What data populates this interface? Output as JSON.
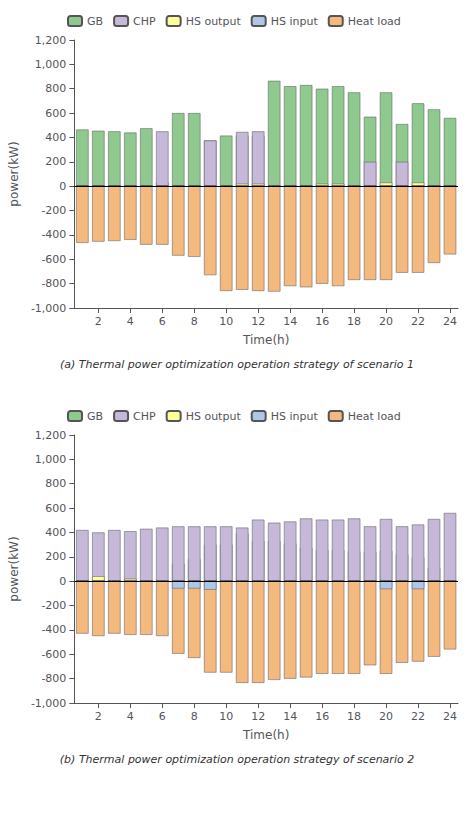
{
  "chart_data": [
    {
      "type": "bar",
      "stacked": true,
      "grid": false,
      "legend": "upper left",
      "title": "(a) Thermal power optimization operation strategy of scenario 1",
      "xlabel": "Time(h)",
      "ylabel": "power(kW)",
      "x": [
        1,
        2,
        3,
        4,
        5,
        6,
        7,
        8,
        9,
        10,
        11,
        12,
        13,
        14,
        15,
        16,
        17,
        18,
        19,
        20,
        21,
        22,
        23,
        24
      ],
      "xlim": [
        0.5,
        24.5
      ],
      "xticks": [
        2,
        4,
        6,
        8,
        10,
        12,
        14,
        16,
        18,
        20,
        22,
        24
      ],
      "ylim": [
        -1000,
        1200
      ],
      "yticks": [
        -1000,
        -800,
        -600,
        -400,
        -200,
        0,
        200,
        400,
        600,
        800,
        1000,
        1200
      ],
      "series": [
        {
          "name": "GB",
          "color": "#90c990",
          "values": [
            465,
            455,
            450,
            440,
            475,
            30,
            600,
            600,
            375,
            415,
            415,
            415,
            865,
            820,
            830,
            800,
            820,
            770,
            570,
            770,
            510,
            680,
            630,
            560
          ]
        },
        {
          "name": "CHP",
          "color": "#c5b8d8",
          "values": [
            0,
            0,
            0,
            0,
            0,
            450,
            0,
            0,
            375,
            0,
            445,
            450,
            0,
            0,
            0,
            0,
            0,
            0,
            200,
            0,
            200,
            0,
            0,
            0
          ]
        },
        {
          "name": "HS output",
          "color": "#ffff99",
          "values": [
            0,
            0,
            0,
            0,
            0,
            0,
            0,
            0,
            0,
            0,
            20,
            20,
            0,
            0,
            0,
            20,
            20,
            0,
            0,
            30,
            0,
            30,
            0,
            0
          ]
        },
        {
          "name": "HS input",
          "color": "#aec6e8",
          "values": [
            0,
            0,
            0,
            0,
            0,
            0,
            0,
            0,
            0,
            0,
            0,
            0,
            0,
            0,
            0,
            0,
            0,
            0,
            0,
            0,
            0,
            0,
            0,
            0
          ]
        },
        {
          "name": "Heat load",
          "color": "#f4b97f",
          "values": [
            -465,
            -455,
            -450,
            -440,
            -480,
            -480,
            -570,
            -580,
            -730,
            -860,
            -850,
            -860,
            -865,
            -820,
            -830,
            -800,
            -820,
            -770,
            -770,
            -770,
            -710,
            -710,
            -630,
            -560
          ]
        },
        {
          "name": "HS input",
          "color": "#aec6e8",
          "values": [
            0,
            0,
            0,
            0,
            0,
            0,
            0,
            0,
            0,
            0,
            0,
            0,
            0,
            0,
            0,
            0,
            0,
            0,
            0,
            0,
            0,
            0,
            0,
            0
          ]
        },
        {
          "name": "HS output",
          "color": "#ffff99",
          "values": [
            0,
            0,
            0,
            0,
            0,
            0,
            0,
            0,
            0,
            0,
            0,
            0,
            0,
            0,
            0,
            0,
            0,
            0,
            0,
            0,
            0,
            0,
            0,
            0
          ]
        }
      ]
    },
    {
      "type": "bar",
      "stacked": true,
      "grid": false,
      "legend": "upper left",
      "title": "(b) Thermal power optimization operation strategy of scenario 2",
      "xlabel": "Time(h)",
      "ylabel": "power(kW)",
      "x": [
        1,
        2,
        3,
        4,
        5,
        6,
        7,
        8,
        9,
        10,
        11,
        12,
        13,
        14,
        15,
        16,
        17,
        18,
        19,
        20,
        21,
        22,
        23,
        24
      ],
      "xlim": [
        0.5,
        24.5
      ],
      "xticks": [
        2,
        4,
        6,
        8,
        10,
        12,
        14,
        16,
        18,
        20,
        22,
        24
      ],
      "ylim": [
        -1000,
        1200
      ],
      "yticks": [
        -1000,
        -800,
        -600,
        -400,
        -200,
        0,
        200,
        400,
        600,
        800,
        1000,
        1200
      ],
      "series": [
        {
          "name": "GB",
          "color": "#90c990",
          "values": [
            10,
            10,
            10,
            10,
            10,
            10,
            145,
            180,
            300,
            300,
            395,
            330,
            330,
            310,
            275,
            255,
            255,
            245,
            240,
            250,
            220,
            195,
            110,
            0
          ]
        },
        {
          "name": "CHP",
          "color": "#c5b8d8",
          "values": [
            420,
            400,
            420,
            410,
            430,
            440,
            450,
            450,
            450,
            450,
            440,
            505,
            480,
            490,
            515,
            505,
            505,
            515,
            450,
            510,
            450,
            465,
            510,
            560
          ]
        },
        {
          "name": "HS output",
          "color": "#ffff99",
          "values": [
            0,
            40,
            0,
            20,
            0,
            0,
            0,
            0,
            0,
            0,
            0,
            0,
            0,
            0,
            0,
            0,
            0,
            0,
            0,
            0,
            0,
            0,
            0,
            0
          ]
        },
        {
          "name": "HS input",
          "color": "#aec6e8",
          "values": [
            0,
            0,
            0,
            0,
            0,
            0,
            0,
            0,
            0,
            0,
            0,
            0,
            0,
            0,
            0,
            0,
            0,
            0,
            0,
            0,
            0,
            0,
            0,
            0
          ]
        },
        {
          "name": "Heat load",
          "color": "#f4b97f",
          "values": [
            -430,
            -450,
            -430,
            -440,
            -440,
            -450,
            -595,
            -630,
            -750,
            -750,
            -835,
            -835,
            -810,
            -800,
            -790,
            -760,
            -760,
            -760,
            -690,
            -760,
            -670,
            -660,
            -620,
            -560
          ]
        },
        {
          "name": "HS input",
          "color": "#aec6e8",
          "values": [
            0,
            0,
            0,
            0,
            0,
            0,
            -60,
            -60,
            -70,
            0,
            0,
            0,
            0,
            0,
            0,
            0,
            0,
            0,
            0,
            -65,
            0,
            -65,
            0,
            0
          ]
        },
        {
          "name": "HS output",
          "color": "#ffff99",
          "values": [
            0,
            0,
            0,
            0,
            0,
            0,
            0,
            0,
            0,
            0,
            0,
            0,
            0,
            0,
            0,
            0,
            0,
            0,
            0,
            0,
            0,
            0,
            0,
            0
          ]
        }
      ]
    }
  ]
}
